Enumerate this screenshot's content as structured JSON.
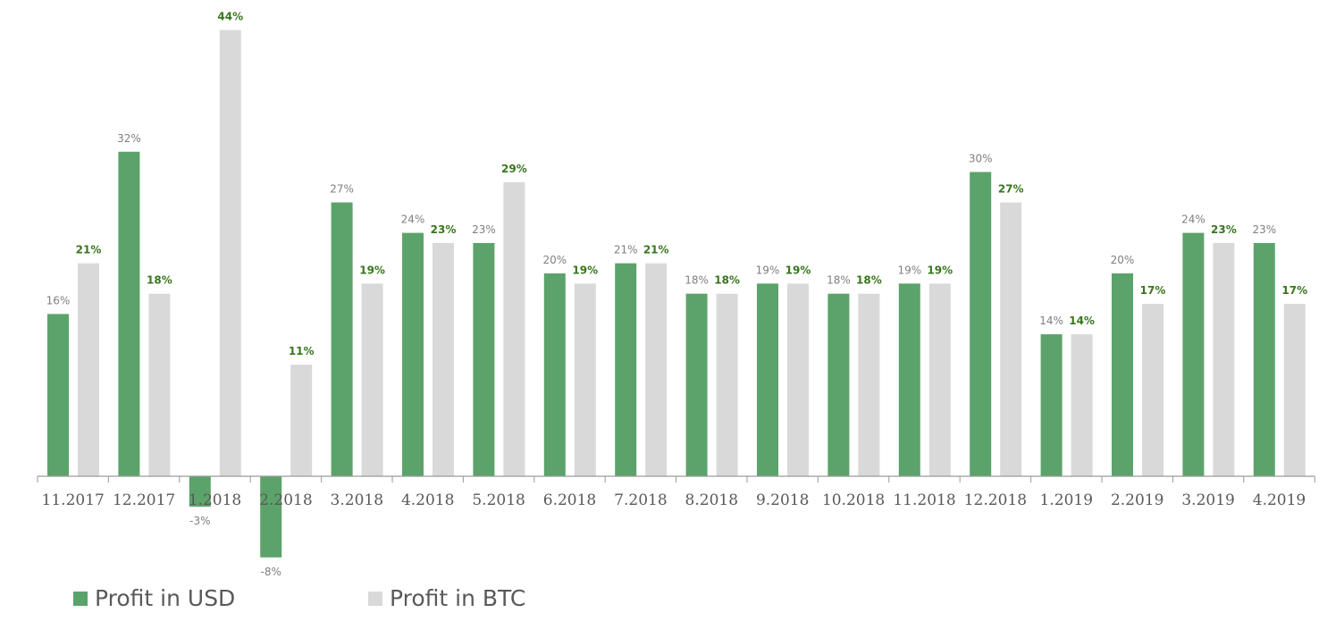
{
  "chart_data": {
    "type": "bar",
    "categories": [
      "11.2017",
      "12.2017",
      "1.2018",
      "2.2018",
      "3.2018",
      "4.2018",
      "5.2018",
      "6.2018",
      "7.2018",
      "8.2018",
      "9.2018",
      "10.2018",
      "11.2018",
      "12.2018",
      "1.2019",
      "2.2019",
      "3.2019",
      "4.2019"
    ],
    "series": [
      {
        "name": "Profit in USD",
        "color": "#5ba36a",
        "values": [
          16,
          32,
          -3,
          -8,
          27,
          24,
          23,
          20,
          21,
          18,
          19,
          18,
          19,
          30,
          14,
          20,
          24,
          23
        ],
        "labels": [
          "16%",
          "32%",
          "-3%",
          "-8%",
          "27%",
          "24%",
          "23%",
          "20%",
          "21%",
          "18%",
          "19%",
          "18%",
          "19%",
          "30%",
          "14%",
          "20%",
          "24%",
          "23%"
        ]
      },
      {
        "name": "Profit in BTC",
        "color": "#d9d9d9",
        "values": [
          21,
          18,
          44,
          11,
          19,
          23,
          29,
          19,
          21,
          18,
          19,
          18,
          19,
          27,
          14,
          17,
          23,
          17
        ],
        "labels": [
          "21%",
          "18%",
          "44%",
          "11%",
          "19%",
          "23%",
          "29%",
          "19%",
          "21%",
          "18%",
          "19%",
          "18%",
          "19%",
          "27%",
          "14%",
          "17%",
          "23%",
          "17%"
        ]
      }
    ],
    "label_colors": {
      "usd": "#7f7f7f",
      "btc": "#38761d"
    },
    "title": "",
    "xlabel": "",
    "ylabel": "",
    "ylim": [
      -9,
      45
    ],
    "grid": false,
    "legend": "bottom-left",
    "axis_color": "#9a9a9a",
    "tick_label_color": "#595959"
  },
  "legend": {
    "usd_label": "Profit in USD",
    "btc_label": "Profit in BTC"
  }
}
